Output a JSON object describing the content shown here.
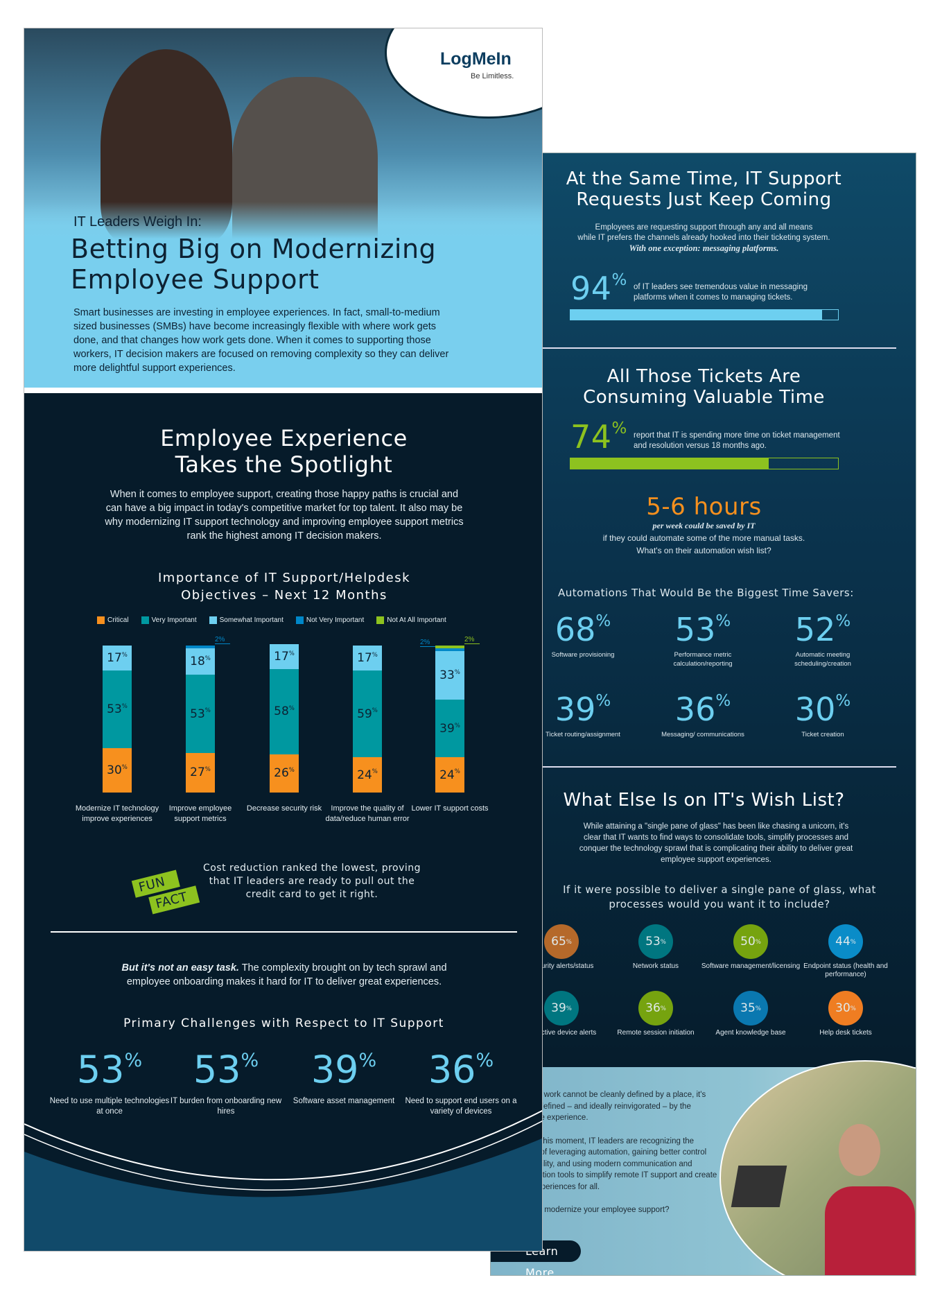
{
  "brand": {
    "logo": "LogMeIn",
    "tagline": "Be Limitless."
  },
  "hero": {
    "kicker": "IT Leaders Weigh In:",
    "title_line1": "Betting Big on Modernizing",
    "title_line2": "Employee Support",
    "paragraph": "Smart businesses are investing in employee experiences. In fact, small-to-medium sized businesses (SMBs) have become increasingly flexible with where work gets done, and that changes how work gets done. When it comes to supporting those workers, IT decision makers are focused on removing complexity so they can deliver more delightful support experiences."
  },
  "spotlight": {
    "title_line1": "Employee Experience",
    "title_line2": "Takes the Spotlight",
    "paragraph": "When it comes to employee support, creating those happy paths is crucial and can have a big impact in today's competitive market for top talent. It also may be why modernizing IT support technology and improving employee support metrics rank the highest among IT decision makers."
  },
  "chart_data": {
    "type": "bar",
    "stacked": true,
    "title": "Importance of IT Support/Helpdesk Objectives – Next 12 Months",
    "legend_placement": "top",
    "categories": [
      "Modernize IT technology improve experiences",
      "Improve employee support metrics",
      "Decrease security risk",
      "Improve the quality of data/reduce human error",
      "Lower IT support costs"
    ],
    "series": [
      {
        "name": "Critical",
        "color": "#f7901e",
        "values": [
          30,
          27,
          26,
          24,
          24
        ]
      },
      {
        "name": "Very Important",
        "color": "#0098a0",
        "values": [
          53,
          53,
          58,
          59,
          39
        ]
      },
      {
        "name": "Somewhat Important",
        "color": "#6dcff0",
        "values": [
          17,
          18,
          17,
          17,
          33
        ]
      },
      {
        "name": "Not Very Important",
        "color": "#0087c8",
        "values": [
          0,
          2,
          0,
          0,
          2
        ]
      },
      {
        "name": "Not At All Important",
        "color": "#8dc21f",
        "values": [
          0,
          0,
          0,
          0,
          2
        ]
      }
    ],
    "ylim": [
      0,
      100
    ]
  },
  "fun_fact": {
    "badge_line1": "FUN",
    "badge_line2": "FACT",
    "text": "Cost reduction ranked the lowest, proving that IT leaders are ready to pull out the credit card to get it right."
  },
  "challenges": {
    "intro_bold": "But it's not an easy task.",
    "intro_rest": " The complexity brought on by tech sprawl and employee onboarding makes it hard for IT to deliver great experiences.",
    "title": "Primary Challenges with Respect to IT Support",
    "items": [
      {
        "value": "53",
        "label": "Need to use multiple technologies at once"
      },
      {
        "value": "53",
        "label": "IT burden from onboarding new hires"
      },
      {
        "value": "39",
        "label": "Software asset management"
      },
      {
        "value": "36",
        "label": "Need to support end users on a variety of devices"
      }
    ]
  },
  "requests": {
    "title_line1": "At the Same Time, IT Support",
    "title_line2": "Requests Just Keep Coming",
    "para_line1": "Employees are requesting support through any and all means",
    "para_line2": "while IT prefers the channels already hooked into their ticketing system.",
    "para_italic": "With one exception: messaging platforms.",
    "stat": "94",
    "stat_text": "of IT leaders see tremendous value in messaging platforms when it comes to managing tickets.",
    "progress": 94
  },
  "tickets": {
    "title_line1": "All Those Tickets Are",
    "title_line2": "Consuming Valuable Time",
    "stat": "74",
    "stat_text": "report that IT is spending more time on ticket management and resolution versus 18 months ago.",
    "progress": 74,
    "hours": "5-6 hours",
    "hours_italic": "per week could be saved by IT",
    "hours_line1": "if they could automate some of the more manual tasks.",
    "hours_line2": "What's on their automation wish list?"
  },
  "automations": {
    "title": "Automations That Would Be the Biggest Time Savers:",
    "items": [
      {
        "value": "68",
        "label": "Software provisioning"
      },
      {
        "value": "53",
        "label": "Performance metric calculation/reporting"
      },
      {
        "value": "52",
        "label": "Automatic meeting scheduling/creation"
      },
      {
        "value": "39",
        "label": "Ticket routing/assignment"
      },
      {
        "value": "36",
        "label": "Messaging/ communications"
      },
      {
        "value": "30",
        "label": "Ticket creation"
      }
    ]
  },
  "wishlist": {
    "title": "What Else Is on IT's Wish List?",
    "paragraph": "While attaining a \"single pane of glass\" has been like chasing a unicorn, it's clear that IT wants to find ways to consolidate tools, simplify processes and conquer the technology sprawl that is complicating their ability to deliver great employee support experiences.",
    "question": "If it were possible to deliver a single pane of glass, what processes would you want it to include?",
    "items": [
      {
        "value": "65",
        "label": "Security alerts/status",
        "color": "#b5692a"
      },
      {
        "value": "53",
        "label": "Network status",
        "color": "#007680"
      },
      {
        "value": "50",
        "label": "Software management/licensing",
        "color": "#76a30f"
      },
      {
        "value": "44",
        "label": "Endpoint status (health and performance)",
        "color": "#0a8cc8"
      },
      {
        "value": "39",
        "label": "Proactive device alerts",
        "color": "#007680"
      },
      {
        "value": "36",
        "label": "Remote session initiation",
        "color": "#76a30f"
      },
      {
        "value": "35",
        "label": "Agent knowledge base",
        "color": "#0a78b0"
      },
      {
        "value": "30",
        "label": "Help desk tickets",
        "color": "#ef7d22"
      }
    ]
  },
  "closing": {
    "para1": "Now that work cannot be cleanly defined by a place, it's being redefined – and ideally reinvigorated – by the employee experience.",
    "para2": "To meet this moment, IT leaders are recognizing the benefits of leveraging automation, gaining better control and visibility, and using modern communication and collaboration tools to simplify remote IT support and create better experiences for all.",
    "para3": "Ready to modernize your employee support?",
    "button": "Learn More"
  }
}
